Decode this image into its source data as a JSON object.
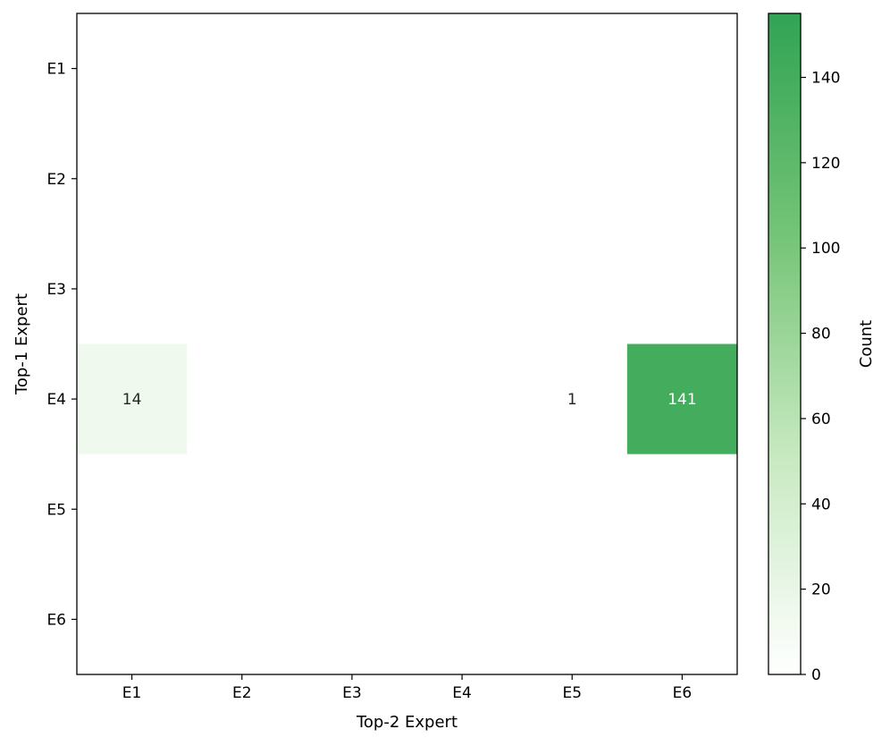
{
  "chart_data": {
    "type": "heatmap",
    "title": "",
    "xlabel": "Top-2 Expert",
    "ylabel": "Top-1 Expert",
    "x_categories": [
      "E1",
      "E2",
      "E3",
      "E4",
      "E5",
      "E6"
    ],
    "y_categories": [
      "E1",
      "E2",
      "E3",
      "E4",
      "E5",
      "E6"
    ],
    "values": [
      [
        0,
        0,
        0,
        0,
        0,
        0
      ],
      [
        0,
        0,
        0,
        0,
        0,
        0
      ],
      [
        0,
        0,
        0,
        0,
        0,
        0
      ],
      [
        14,
        0,
        0,
        0,
        1,
        141
      ],
      [
        0,
        0,
        0,
        0,
        0,
        0
      ],
      [
        0,
        0,
        0,
        0,
        0,
        0
      ]
    ],
    "annotate_nonzero_only": true,
    "colorbar": {
      "label": "Count",
      "range": [
        0,
        155
      ],
      "ticks": [
        0,
        20,
        40,
        60,
        80,
        100,
        120,
        140
      ],
      "colors": [
        "#ffffff",
        "#c7e9c0",
        "#74c476",
        "#31a354"
      ]
    },
    "grid": false
  }
}
